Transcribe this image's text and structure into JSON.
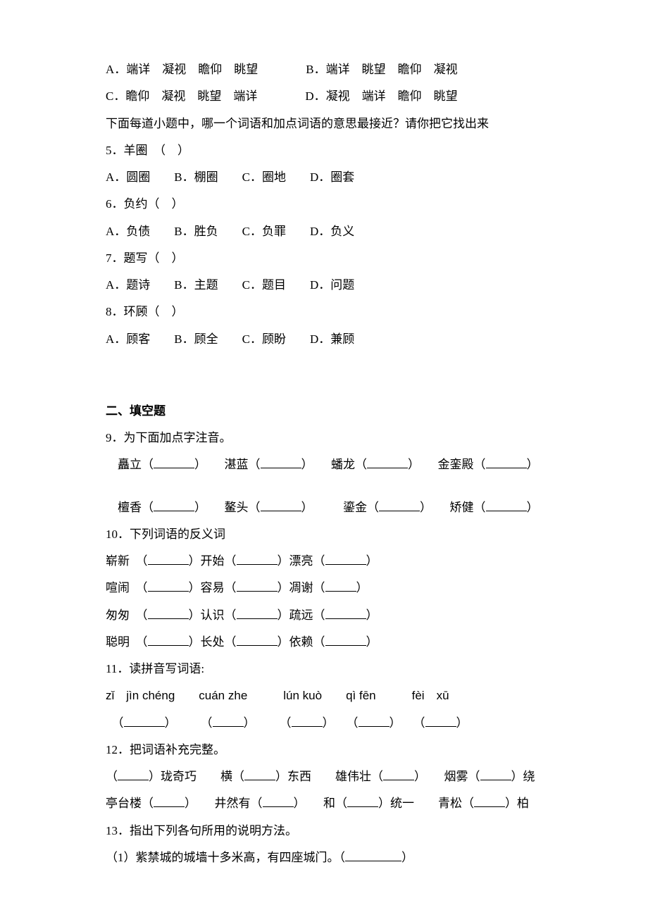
{
  "colors": {
    "text": "#000000",
    "background": "#ffffff",
    "underline": "#000000"
  },
  "fonts": {
    "body_family": "SimSun",
    "body_size_pt": 13,
    "pinyin_family": "Arial"
  },
  "q_abcd_rows": [
    {
      "left": "A．端详　凝视　瞻仰　眺望",
      "right": "B．端详　眺望　瞻仰　凝视"
    },
    {
      "left": "C．瞻仰　凝视　眺望　端详",
      "right": "D．凝视　端详　瞻仰　眺望"
    }
  ],
  "instruction": "下面每道小题中，哪一个词语和加点词语的意思最接近？请你把它找出来",
  "q5": {
    "stem_prefix": "5．羊",
    "dot_char": "圈",
    "stem_suffix": "　（　）",
    "opts": "A．圆圈　　B．棚圈　　C．圈地　　D．圈套"
  },
  "q6": {
    "stem_prefix": "6．",
    "dot_char": "负",
    "stem_suffix": "约（　）",
    "opts": "A．负债　　B．胜负　　C．负罪　　D．负义"
  },
  "q7": {
    "stem_prefix": "7．",
    "dot_char": "题",
    "stem_suffix": "写（　）",
    "opts": "A．题诗　　B．主题　　C．题目　　D．问题"
  },
  "q8": {
    "stem_prefix": "8．环",
    "dot_char": "顾",
    "stem_suffix": "（　）",
    "opts": "A．顾客　　B．顾全　　C．顾盼　　D．兼顾"
  },
  "section2_header": "二、填空题",
  "q9_stem": "9．为下面加点字注音。",
  "q9_row1": [
    {
      "pre": "　",
      "dot": "矗",
      "post": "立（",
      "blank": "m",
      "close": "）"
    },
    {
      "pre": "　　",
      "dot": "湛",
      "post": "蓝（",
      "blank": "m",
      "close": "）"
    },
    {
      "pre": "　　",
      "dot": "蟠",
      "post": "龙（",
      "blank": "m",
      "close": "）"
    },
    {
      "pre": "　　金",
      "dot": "銮",
      "post": "殿（",
      "blank": "m",
      "close": "）"
    }
  ],
  "q9_row2": [
    {
      "pre": "　",
      "dot": "檀",
      "post": "香（",
      "blank": "m",
      "close": "）"
    },
    {
      "pre": "　　",
      "dot": "鳌",
      "post": "头（",
      "blank": "m",
      "close": "）"
    },
    {
      "pre": "　　　",
      "dot": "鎏",
      "post": "金（",
      "blank": "m",
      "close": "）"
    },
    {
      "pre": "　　",
      "dot": "矫",
      "post": "健（",
      "blank": "m",
      "close": "）"
    }
  ],
  "q10_stem": "10．下列词语的反义词",
  "q10_rows": [
    [
      {
        "w": "崭新　（",
        "b": "m",
        "c": "）"
      },
      {
        "w": "开始（",
        "b": "m",
        "c": "）"
      },
      {
        "w": "漂亮（",
        "b": "m",
        "c": "）"
      }
    ],
    [
      {
        "w": "喧闹　（",
        "b": "m",
        "c": "）"
      },
      {
        "w": "容易（",
        "b": "m",
        "c": "）"
      },
      {
        "w": "凋谢（",
        "b": "s",
        "c": "）"
      }
    ],
    [
      {
        "w": "匆匆　（",
        "b": "m",
        "c": "）"
      },
      {
        "w": "认识（",
        "b": "m",
        "c": "）"
      },
      {
        "w": "疏远（",
        "b": "m",
        "c": "）"
      }
    ],
    [
      {
        "w": "聪明　（",
        "b": "m",
        "c": "）"
      },
      {
        "w": "长处（",
        "b": "m",
        "c": "）"
      },
      {
        "w": "依赖（",
        "b": "m",
        "c": "）"
      }
    ]
  ],
  "q11_stem": "11．读拼音写词语:",
  "q11_pinyin": "zǐ　jìn chéng　　cuán zhe　　　lún kuò　　qì fēn　　　fèi　xū",
  "q11_blanks": [
    {
      "pre": "　（",
      "b": "m",
      "c": "）"
    },
    {
      "pre": "　　　（",
      "b": "s",
      "c": "）"
    },
    {
      "pre": "　　　（",
      "b": "s",
      "c": "）"
    },
    {
      "pre": "　　（",
      "b": "s",
      "c": "）"
    },
    {
      "pre": "　　（",
      "b": "s",
      "c": "）"
    }
  ],
  "q12_stem": "12．把词语补充完整。",
  "q12_row1": [
    {
      "pre": "（",
      "b": "s",
      "c": "）珑奇巧"
    },
    {
      "pre": "　　横（",
      "b": "s",
      "c": "）东西"
    },
    {
      "pre": "　　雄伟壮（",
      "b": "s",
      "c": "）"
    },
    {
      "pre": "　　烟雾（",
      "b": "s",
      "c": "）绕"
    }
  ],
  "q12_row2": [
    {
      "pre": "亭台楼（",
      "b": "s",
      "c": "）"
    },
    {
      "pre": "　　井然有（",
      "b": "s",
      "c": "）"
    },
    {
      "pre": "　　和（",
      "b": "s",
      "c": "）统一"
    },
    {
      "pre": "　　青松（",
      "b": "s",
      "c": "）柏"
    }
  ],
  "q13_stem": "13．指出下列各句所用的说明方法。",
  "q13_item1_pre": "（1）紫禁城的城墙十多米高，有四座城门。（",
  "q13_item1_blank": "l",
  "q13_item1_close": "）"
}
